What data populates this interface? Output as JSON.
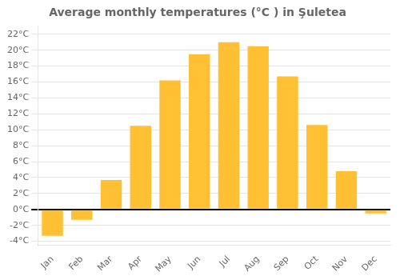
{
  "chart_data": {
    "type": "bar",
    "title": "Average monthly temperatures (°C ) in Şuletea",
    "categories": [
      "Jan",
      "Feb",
      "Mar",
      "Apr",
      "May",
      "Jun",
      "Jul",
      "Aug",
      "Sep",
      "Oct",
      "Nov",
      "Dec"
    ],
    "values": [
      -3.3,
      -1.3,
      3.7,
      10.5,
      16.2,
      19.5,
      21.0,
      20.5,
      16.7,
      10.6,
      4.8,
      -0.5
    ],
    "color": "#FFC133",
    "ylim": [
      -4.5,
      23
    ],
    "yticks": [
      {
        "value": -4,
        "label": "-4°C"
      },
      {
        "value": -2,
        "label": "-2°C"
      },
      {
        "value": 0,
        "label": "0°C"
      },
      {
        "value": 2,
        "label": "2°C"
      },
      {
        "value": 4,
        "label": "4°C"
      },
      {
        "value": 6,
        "label": "6°C"
      },
      {
        "value": 8,
        "label": "8°C"
      },
      {
        "value": 10,
        "label": "10°C"
      },
      {
        "value": 12,
        "label": "12°C"
      },
      {
        "value": 14,
        "label": "14°C"
      },
      {
        "value": 16,
        "label": "16°C"
      },
      {
        "value": 18,
        "label": "18°C"
      },
      {
        "value": 20,
        "label": "20°C"
      },
      {
        "value": 22,
        "label": "22°C"
      }
    ],
    "grid": true
  }
}
